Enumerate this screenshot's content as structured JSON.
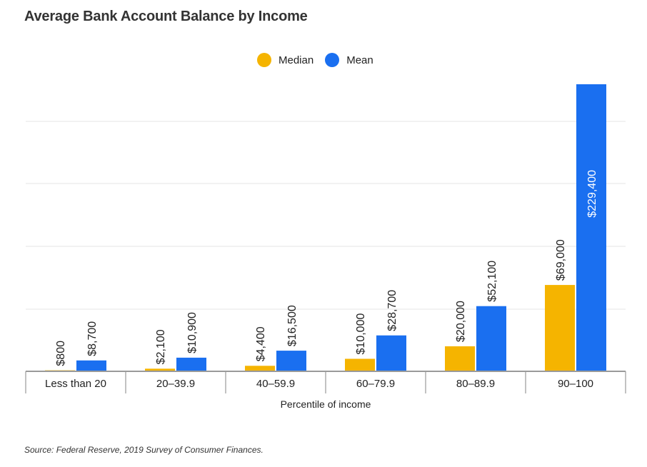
{
  "chart_data": {
    "type": "bar",
    "title": "Average Bank Account Balance by Income",
    "xlabel": "Percentile of income",
    "ylabel": "",
    "categories": [
      "Less than 20",
      "20–39.9",
      "40–59.9",
      "60–79.9",
      "80–89.9",
      "90–100"
    ],
    "series": [
      {
        "name": "Median",
        "color": "#f5b400",
        "values": [
          800,
          2100,
          4400,
          10000,
          20000,
          69000
        ],
        "labels": [
          "$800",
          "$2,100",
          "$4,400",
          "$10,000",
          "$20,000",
          "$69,000"
        ]
      },
      {
        "name": "Mean",
        "color": "#1a6ff0",
        "values": [
          8700,
          10900,
          16500,
          28700,
          52100,
          229400
        ],
        "labels": [
          "$8,700",
          "$10,900",
          "$16,500",
          "$28,700",
          "$52,100",
          "$229,400"
        ]
      }
    ],
    "ylim": [
      0,
      229400
    ],
    "grid": true,
    "legend_position": "top-center",
    "source": "Source: Federal Reserve, 2019 Survey of Consumer Finances."
  }
}
